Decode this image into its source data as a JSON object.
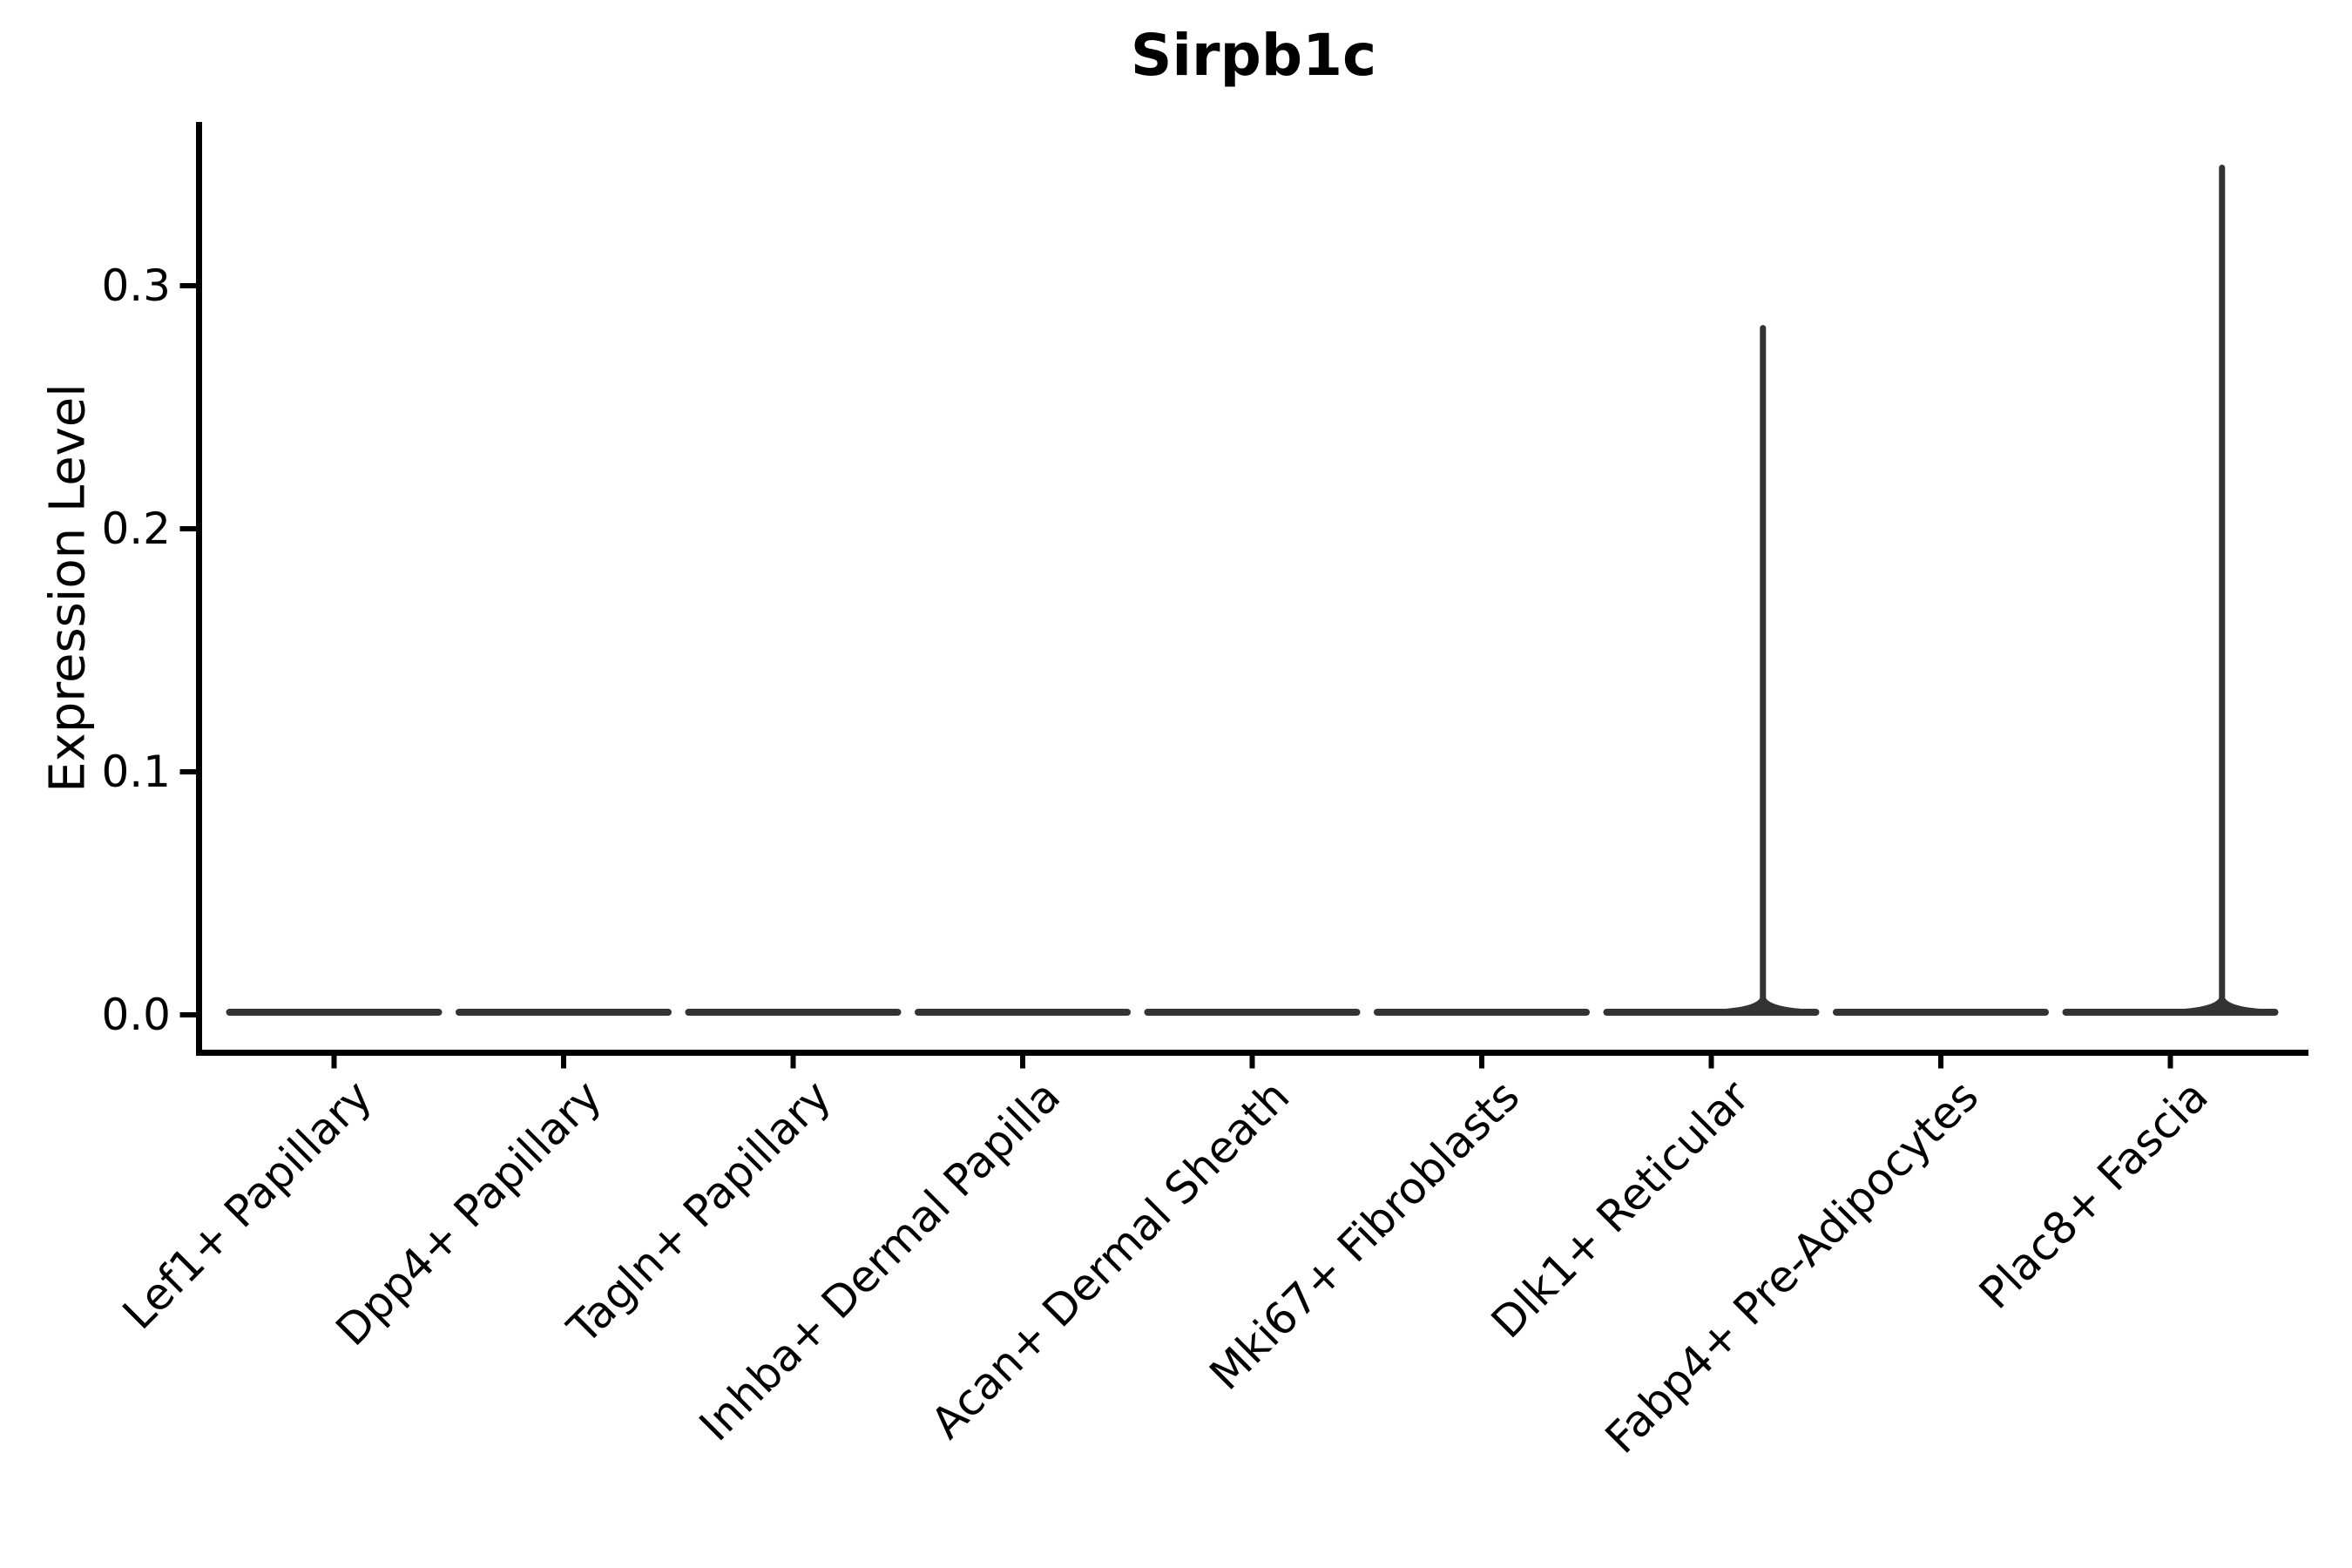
{
  "title": "Sirpb1c",
  "colors": {
    "background": "#ffffff",
    "axis": "#000000",
    "text": "#000000",
    "violin_stroke": "#333333"
  },
  "chart_data": {
    "type": "violin",
    "title": "Sirpb1c",
    "xlabel": "",
    "ylabel": "Expression Level",
    "grid": false,
    "legend": false,
    "ylim": [
      -0.017,
      0.367
    ],
    "ytick_labels": [
      "0.0",
      "0.1",
      "0.2",
      "0.3"
    ],
    "ytick_values": [
      0.0,
      0.1,
      0.2,
      0.3
    ],
    "categories": [
      "Lef1+ Papillary",
      "Dpp4+ Papillary",
      "Tagln+ Papillary",
      "Inhba+ Dermal Papilla",
      "Acan+ Dermal Sheath",
      "Mki67+ Fibroblasts",
      "Dlk1+ Reticular",
      "Fabp4+ Pre-Adipocytes",
      "Plac8+ Fascia"
    ],
    "violins": [
      {
        "category": "Lef1+ Papillary",
        "baseline": 0.0,
        "max": 0.0
      },
      {
        "category": "Dpp4+ Papillary",
        "baseline": 0.0,
        "max": 0.0
      },
      {
        "category": "Tagln+ Papillary",
        "baseline": 0.0,
        "max": 0.0
      },
      {
        "category": "Inhba+ Dermal Papilla",
        "baseline": 0.0,
        "max": 0.0
      },
      {
        "category": "Acan+ Dermal Sheath",
        "baseline": 0.0,
        "max": 0.0
      },
      {
        "category": "Mki67+ Fibroblasts",
        "baseline": 0.0,
        "max": 0.0
      },
      {
        "category": "Dlk1+ Reticular",
        "baseline": 0.0,
        "max": 0.284
      },
      {
        "category": "Fabp4+ Pre-Adipocytes",
        "baseline": 0.0,
        "max": 0.0
      },
      {
        "category": "Plac8+ Fascia",
        "baseline": 0.0,
        "max": 0.35
      }
    ],
    "spike_x_offset_fraction_of_slot": 0.225
  }
}
